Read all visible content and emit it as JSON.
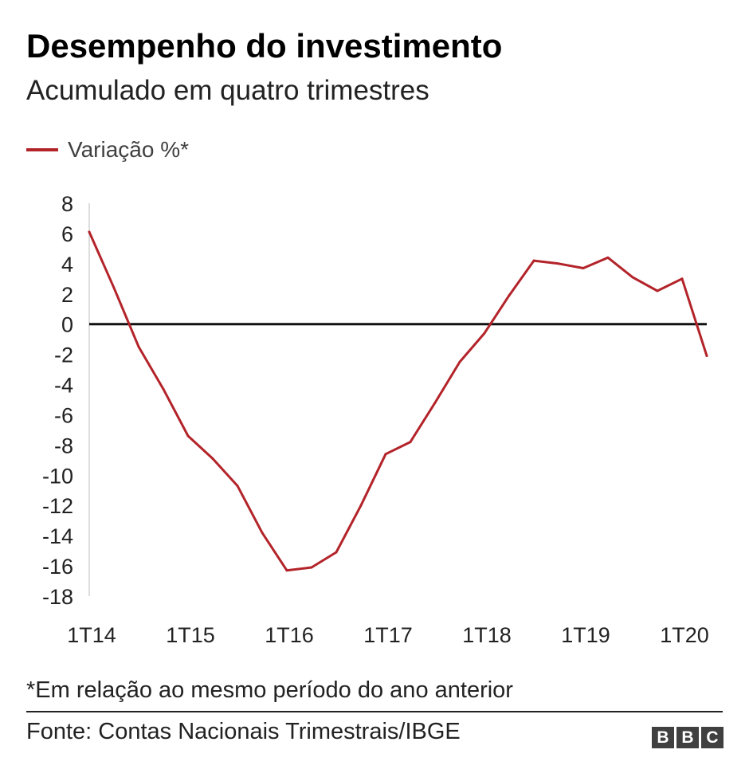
{
  "title": "Desempenho do investimento",
  "subtitle": "Acumulado em quatro trimestres",
  "legend_label": "Variação %*",
  "footnote": "*Em relação ao mesmo período do ano anterior",
  "source": "Fonte: Contas Nacionais Trimestrais/IBGE",
  "logo_letters": [
    "B",
    "B",
    "C"
  ],
  "colors": {
    "line": "#b3242a",
    "zero_line": "#111111",
    "axis": "#dddddd",
    "text": "#222222"
  },
  "chart_data": {
    "type": "line",
    "title": "Desempenho do investimento",
    "subtitle": "Acumulado em quatro trimestres",
    "xlabel": "",
    "ylabel": "",
    "ylim": [
      -18,
      8
    ],
    "yticks": [
      8,
      6,
      4,
      2,
      0,
      -2,
      -4,
      -6,
      -8,
      -10,
      -12,
      -14,
      -16,
      -18
    ],
    "x_tick_labels": [
      "1T14",
      "1T15",
      "1T16",
      "1T17",
      "1T18",
      "1T19",
      "1T20"
    ],
    "x": [
      "1T14",
      "2T14",
      "3T14",
      "4T14",
      "1T15",
      "2T15",
      "3T15",
      "4T15",
      "1T16",
      "2T16",
      "3T16",
      "4T16",
      "1T17",
      "2T17",
      "3T17",
      "4T17",
      "1T18",
      "2T18",
      "3T18",
      "4T18",
      "1T19",
      "2T19",
      "3T19",
      "4T19",
      "1T20",
      "2T20"
    ],
    "series": [
      {
        "name": "Variação %*",
        "values": [
          6.1,
          2.4,
          -1.5,
          -4.3,
          -7.4,
          -8.9,
          -10.7,
          -13.8,
          -16.3,
          -16.1,
          -15.1,
          -12.0,
          -8.6,
          -7.8,
          -5.2,
          -2.5,
          -0.6,
          1.9,
          4.2,
          4.0,
          3.7,
          4.4,
          3.1,
          2.2,
          3.0,
          -2.1
        ]
      }
    ],
    "zero_line": true,
    "grid": false,
    "legend": "top-left"
  }
}
